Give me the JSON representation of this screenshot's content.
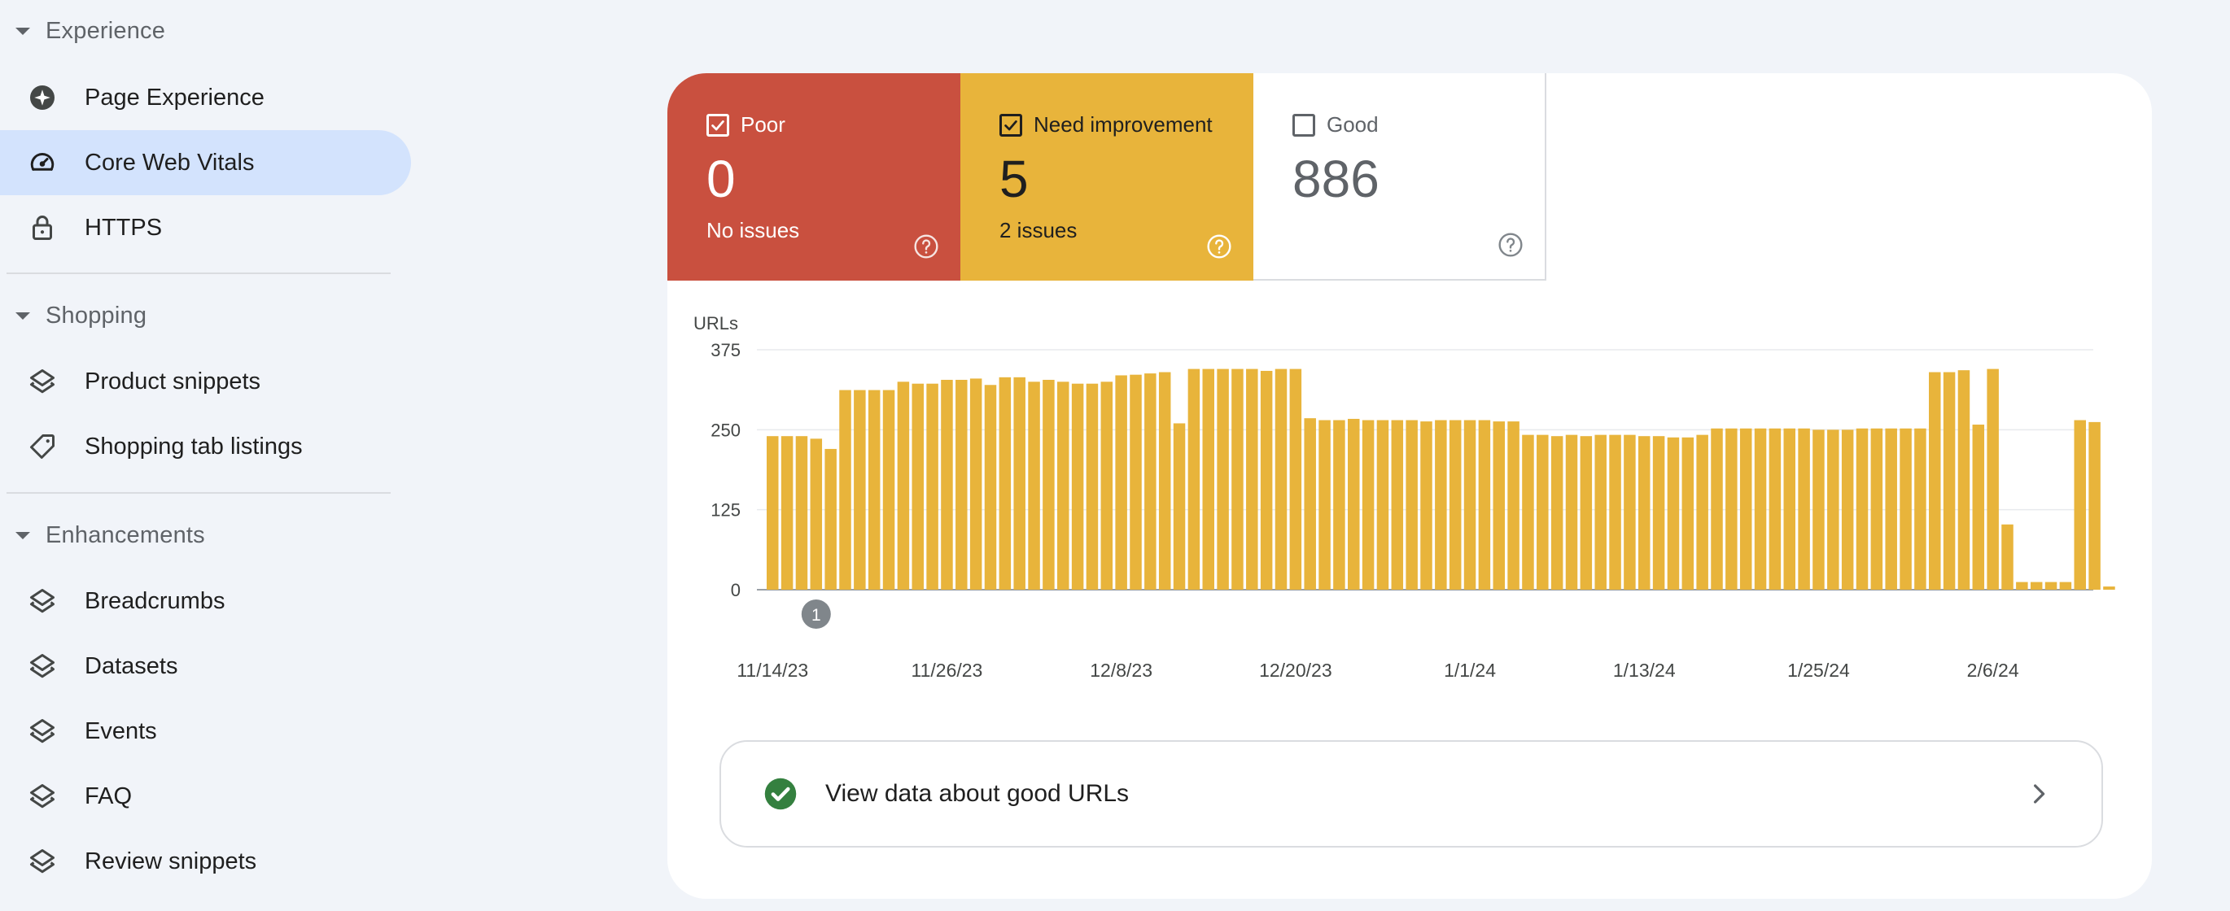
{
  "sidebar": {
    "sections": [
      {
        "label": "Experience",
        "items": [
          {
            "label": "Page Experience",
            "icon": "page-experience-icon",
            "active": false
          },
          {
            "label": "Core Web Vitals",
            "icon": "speedometer-icon",
            "active": true
          },
          {
            "label": "HTTPS",
            "icon": "lock-icon",
            "active": false
          }
        ]
      },
      {
        "label": "Shopping",
        "items": [
          {
            "label": "Product snippets",
            "icon": "layers-icon",
            "active": false
          },
          {
            "label": "Shopping tab listings",
            "icon": "tag-icon",
            "active": false
          }
        ]
      },
      {
        "label": "Enhancements",
        "items": [
          {
            "label": "Breadcrumbs",
            "icon": "layers-icon",
            "active": false
          },
          {
            "label": "Datasets",
            "icon": "layers-icon",
            "active": false
          },
          {
            "label": "Events",
            "icon": "layers-icon",
            "active": false
          },
          {
            "label": "FAQ",
            "icon": "layers-icon",
            "active": false
          },
          {
            "label": "Review snippets",
            "icon": "layers-icon",
            "active": false
          }
        ]
      }
    ]
  },
  "summary": {
    "poor": {
      "label": "Poor",
      "count": "0",
      "sub": "No issues",
      "checked": true,
      "color": "#c9503f"
    },
    "need": {
      "label": "Need improvement",
      "count": "5",
      "sub": "2 issues",
      "checked": true,
      "color": "#e8b43b"
    },
    "good": {
      "label": "Good",
      "count": "886",
      "checked": false
    }
  },
  "chart_data": {
    "type": "bar",
    "ylabel": "URLs",
    "ylim": [
      0,
      375
    ],
    "yticks": [
      0,
      125,
      250,
      375
    ],
    "x_tick_labels": [
      "11/14/23",
      "11/26/23",
      "12/8/23",
      "12/20/23",
      "1/1/24",
      "1/13/24",
      "1/25/24",
      "2/6/24"
    ],
    "annotation": {
      "label": "1",
      "date": "11/17/23"
    },
    "bar_color": "#e8b43b",
    "grid": true,
    "series": [
      {
        "values": [
          240,
          240,
          240,
          236,
          220,
          312,
          312,
          312,
          312,
          325,
          322,
          322,
          328,
          328,
          330,
          320,
          332,
          332,
          325,
          328,
          325,
          322,
          322,
          325,
          335,
          336,
          338,
          340,
          260,
          345,
          345,
          345,
          345,
          345,
          342,
          345,
          345,
          268,
          265,
          265,
          267,
          265,
          265,
          265,
          265,
          263,
          265,
          265,
          265,
          265,
          263,
          263,
          242,
          242,
          240,
          242,
          240,
          242,
          242,
          242,
          240,
          240,
          238,
          238,
          242,
          252,
          252,
          252,
          252,
          252,
          252,
          252,
          250,
          250,
          250,
          252,
          252,
          252,
          252,
          252,
          340,
          340,
          343,
          258,
          345,
          102,
          12,
          12,
          12,
          12,
          265,
          262,
          5
        ]
      }
    ]
  },
  "good_link": {
    "text": "View data about good URLs"
  }
}
